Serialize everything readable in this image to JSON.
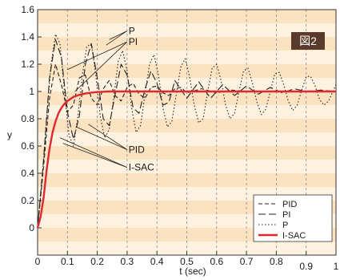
{
  "chart_data": {
    "type": "line",
    "title": "",
    "badge": "図2",
    "xlabel": "t (sec)",
    "ylabel": "y",
    "xlim": [
      0,
      1
    ],
    "ylim": [
      -0.2,
      1.6
    ],
    "x_ticks": [
      0,
      0.1,
      0.2,
      0.3,
      0.4,
      0.5,
      0.6,
      0.7,
      0.8,
      0.9,
      1
    ],
    "x_tick_labels": [
      "0",
      "0.1",
      "0.2",
      "0.3",
      "0.4",
      "0.5",
      "0.6",
      "0.7",
      "0.8",
      "0.9",
      "1"
    ],
    "y_ticks": [
      0,
      0.2,
      0.4,
      0.6,
      0.8,
      1,
      1.2,
      1.4,
      1.6
    ],
    "y_tick_labels": [
      "0",
      "0.2",
      "0.4",
      "0.6",
      "0.8",
      "1",
      "1.2",
      "1.4",
      "1.6"
    ],
    "grid": "vertical dashed",
    "background": {
      "band_color": "#fbe2c0",
      "band_alt_color": "#fdf1df"
    },
    "legend": {
      "position": "bottom-right",
      "entries": [
        {
          "label": "PID",
          "style": "dash",
          "color": "#222222"
        },
        {
          "label": "PI",
          "style": "longdash",
          "color": "#222222"
        },
        {
          "label": "P",
          "style": "dot",
          "color": "#222222"
        },
        {
          "label": "I-SAC",
          "style": "solid",
          "color": "#e0282e"
        }
      ]
    },
    "annotations": [
      {
        "text": "P",
        "target": "P"
      },
      {
        "text": "PI",
        "target": "PI"
      },
      {
        "text": "PID",
        "target": "PID"
      },
      {
        "text": "I-SAC",
        "target": "I-SAC"
      }
    ],
    "series": [
      {
        "name": "PID",
        "style": "dash",
        "color": "#222222",
        "x": [
          0,
          0.02,
          0.04,
          0.06,
          0.08,
          0.1,
          0.12,
          0.14,
          0.16,
          0.18,
          0.2,
          0.22,
          0.24,
          0.26,
          0.28,
          0.3,
          0.32,
          0.34,
          0.36,
          0.38,
          0.4,
          0.42,
          0.44,
          0.46,
          0.48,
          0.5,
          0.55,
          0.6,
          0.65,
          0.7,
          0.75,
          0.8,
          0.85,
          0.9,
          0.95,
          1.0
        ],
        "y": [
          0,
          0.45,
          0.95,
          1.2,
          1.05,
          0.85,
          0.9,
          1.1,
          1.12,
          0.95,
          0.9,
          1.02,
          1.08,
          0.97,
          0.93,
          1.03,
          1.06,
          0.98,
          0.95,
          1.03,
          1.04,
          0.99,
          0.97,
          1.02,
          1.03,
          0.99,
          1.02,
          0.99,
          1.01,
          1.0,
          1.0,
          1.0,
          1.0,
          1.0,
          1.0,
          1.0
        ]
      },
      {
        "name": "PI",
        "style": "longdash",
        "color": "#222222",
        "x": [
          0,
          0.02,
          0.04,
          0.06,
          0.08,
          0.1,
          0.12,
          0.14,
          0.16,
          0.18,
          0.2,
          0.22,
          0.24,
          0.26,
          0.28,
          0.3,
          0.32,
          0.34,
          0.36,
          0.38,
          0.4,
          0.42,
          0.44,
          0.46,
          0.5,
          0.54,
          0.58,
          0.62,
          0.66,
          0.7,
          0.74,
          0.78,
          0.82,
          0.86,
          0.9,
          0.95,
          1.0
        ],
        "y": [
          0,
          0.5,
          1.1,
          1.38,
          1.25,
          0.85,
          0.65,
          0.82,
          1.2,
          1.35,
          1.1,
          0.8,
          0.75,
          0.98,
          1.2,
          1.12,
          0.88,
          0.84,
          1.02,
          1.15,
          1.06,
          0.9,
          0.92,
          1.08,
          0.95,
          1.07,
          0.95,
          1.05,
          0.97,
          1.04,
          0.98,
          1.03,
          0.99,
          1.02,
          1.0,
          1.01,
          1.0
        ]
      },
      {
        "name": "P",
        "style": "dot",
        "color": "#222222",
        "x": [
          0,
          0.015,
          0.03,
          0.045,
          0.06,
          0.075,
          0.09,
          0.105,
          0.12,
          0.135,
          0.15,
          0.165,
          0.18,
          0.195,
          0.21,
          0.225,
          0.24,
          0.255,
          0.27,
          0.285,
          0.3,
          0.315,
          0.33,
          0.345,
          0.36,
          0.375,
          0.39,
          0.405,
          0.42,
          0.435,
          0.45,
          0.465,
          0.48,
          0.495,
          0.51,
          0.525,
          0.54,
          0.555,
          0.57,
          0.585,
          0.6,
          0.615,
          0.63,
          0.645,
          0.66,
          0.675,
          0.69,
          0.705,
          0.72,
          0.735,
          0.75,
          0.765,
          0.78,
          0.795,
          0.81,
          0.825,
          0.84,
          0.855,
          0.87,
          0.885,
          0.9,
          0.915,
          0.93,
          0.945,
          0.96,
          0.975,
          1.0
        ],
        "y": [
          0,
          0.35,
          0.8,
          1.2,
          1.42,
          1.35,
          1.0,
          0.68,
          0.6,
          0.82,
          1.12,
          1.33,
          1.35,
          1.12,
          0.82,
          0.66,
          0.72,
          0.95,
          1.22,
          1.3,
          1.15,
          0.88,
          0.7,
          0.75,
          0.98,
          1.2,
          1.27,
          1.12,
          0.88,
          0.74,
          0.78,
          0.98,
          1.18,
          1.24,
          1.1,
          0.9,
          0.77,
          0.8,
          1.0,
          1.17,
          1.2,
          1.08,
          0.9,
          0.8,
          0.84,
          1.0,
          1.15,
          1.17,
          1.06,
          0.92,
          0.83,
          0.87,
          1.0,
          1.13,
          1.14,
          1.05,
          0.93,
          0.86,
          0.9,
          1.01,
          1.11,
          1.11,
          1.04,
          0.94,
          0.9,
          0.93,
          1.05
        ]
      },
      {
        "name": "I-SAC",
        "style": "solid",
        "color": "#e0282e",
        "x": [
          0,
          0.01,
          0.02,
          0.03,
          0.04,
          0.05,
          0.06,
          0.07,
          0.08,
          0.09,
          0.1,
          0.12,
          0.14,
          0.16,
          0.18,
          0.2,
          0.24,
          0.3,
          0.4,
          0.5,
          0.6,
          0.7,
          0.8,
          0.9,
          1.0
        ],
        "y": [
          0,
          0.08,
          0.22,
          0.42,
          0.58,
          0.7,
          0.78,
          0.84,
          0.88,
          0.91,
          0.93,
          0.96,
          0.975,
          0.985,
          0.992,
          0.996,
          1.0,
          1.0,
          1.0,
          1.0,
          1.0,
          1.0,
          1.0,
          1.0,
          1.0
        ]
      }
    ]
  }
}
